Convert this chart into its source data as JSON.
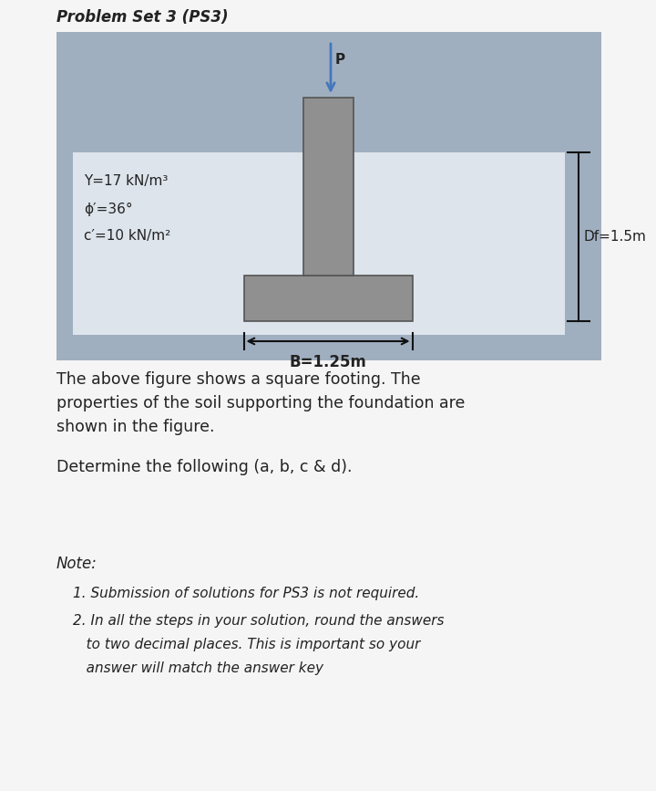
{
  "title": "Problem Set 3 (PS3)",
  "title_fontsize": 12,
  "title_fontstyle": "italic",
  "title_fontweight": "bold",
  "bg_color": "#f5f5f5",
  "diagram_bg": "#a0afc0",
  "soil_rect_color": "#dde4ec",
  "footing_color": "#909090",
  "column_color": "#909090",
  "soil_label_gamma": "Y=17 kN/m³",
  "soil_label_phi": "ϕ′=36°",
  "soil_label_c": "c′=10 kN/m²",
  "df_label": "Df=1.5m",
  "b_label": "B=1.25m",
  "p_label": "P",
  "paragraph1_line1": "The above figure shows a square footing. The",
  "paragraph1_line2": "properties of the soil supporting the foundation are",
  "paragraph1_line3": "shown in the figure.",
  "paragraph2": "Determine the following (a, b, c & d).",
  "note_title": "Note:",
  "note1": "1. Submission of solutions for PS3 is not required.",
  "note2a": "2. In all the steps in your solution, round the answers",
  "note2b": "   to two decimal places. This is important so your",
  "note2c": "   answer will match the answer key",
  "arrow_color": "#4477bb",
  "dim_line_color": "#111111",
  "text_color": "#222222",
  "border_color": "#888888"
}
